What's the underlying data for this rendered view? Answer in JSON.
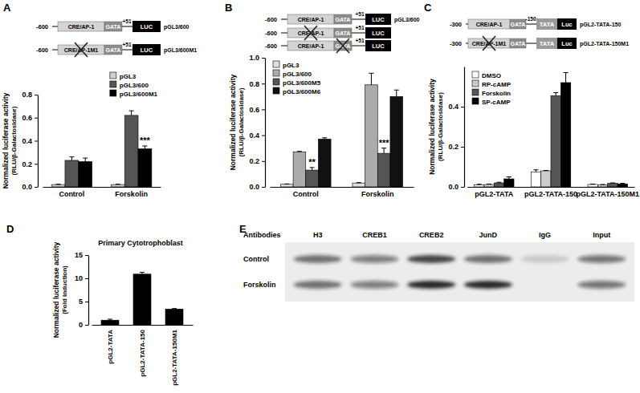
{
  "panel_labels": [
    "A",
    "B",
    "C",
    "D",
    "E"
  ],
  "diagrams": [
    {
      "constructs": [
        {
          "start": "-600",
          "upstream": [
            {
              "label": "CRE/AP-1"
            },
            {
              "label": "GATA"
            }
          ],
          "end": "+51",
          "downstream": [
            {
              "label": "LUC"
            }
          ],
          "name": "pGL3/600"
        },
        {
          "start": "-600",
          "upstream": [
            {
              "label": "CRE/AP-1M1",
              "mutated": true
            },
            {
              "label": "GATA"
            }
          ],
          "end": "+51",
          "downstream": [
            {
              "label": "LUC"
            }
          ],
          "name": "pGL3/600M1"
        }
      ]
    },
    {
      "constructs": [
        {
          "start": "-600",
          "upstream": [
            {
              "label": "CRE/AP-1"
            },
            {
              "label": "GATA"
            }
          ],
          "end": "+51",
          "downstream": [
            {
              "label": "LUC"
            }
          ],
          "name": "pGL3/600"
        },
        {
          "start": "-600",
          "upstream": [
            {
              "label": "CRE/AP-1",
              "mutated": true
            },
            {
              "label": "GATA"
            }
          ],
          "end": "+51",
          "downstream": [
            {
              "label": "LUC"
            }
          ]
        },
        {
          "start": "-600",
          "upstream": [
            {
              "label": "CRE/AP-1"
            },
            {
              "label": "GATA",
              "mutated": true
            }
          ],
          "end": "+51",
          "downstream": [
            {
              "label": "LUC"
            }
          ]
        }
      ]
    },
    {
      "constructs": [
        {
          "start": "-300",
          "upstream": [
            {
              "label": "CRE/AP-1"
            },
            {
              "label": "GATA"
            }
          ],
          "end": "-150",
          "downstream": [
            {
              "label": "TATA"
            },
            {
              "label": "Luc"
            }
          ],
          "name": "pGL2-TATA-150"
        },
        {
          "start": "-300",
          "upstream": [
            {
              "label": "CRE/AP-1M1",
              "mutated": true
            },
            {
              "label": "GATA"
            }
          ],
          "downstream": [
            {
              "label": "TATA"
            },
            {
              "label": "Luc"
            }
          ],
          "name": "pGL2-TATA-150M1"
        }
      ]
    }
  ],
  "chart_data": [
    {
      "type": "bar",
      "ylabel": [
        "Normalized luciferase activity",
        "(RLU/β-Galactosidase)"
      ],
      "categories": [
        "Control",
        "Forskolin"
      ],
      "series": [
        {
          "name": "pGL3",
          "color": "#d0d0d0",
          "values": [
            0.02,
            0.02
          ],
          "errors": [
            0.003,
            0.003
          ]
        },
        {
          "name": "pGL3/600",
          "color": "#555555",
          "values": [
            0.23,
            0.62
          ],
          "errors": [
            0.03,
            0.04
          ]
        },
        {
          "name": "pGL3/600M1",
          "color": "#000000",
          "values": [
            0.22,
            0.33
          ],
          "errors": [
            0.03,
            0.025
          ]
        }
      ],
      "ylim": [
        0,
        0.8
      ],
      "yticks": [
        {
          "value": 0,
          "label": "0.0"
        },
        0.2,
        0.4,
        0.6,
        0.8
      ],
      "legend": "upper right",
      "annotations": [
        {
          "text": "***",
          "series": 2,
          "category": 1
        }
      ]
    },
    {
      "type": "bar",
      "ylabel": [
        "Normalized luciferase activity",
        "(RLU/β-Galactosidase)"
      ],
      "categories": [
        "Control",
        "Forskolin"
      ],
      "series": [
        {
          "name": "pGL3",
          "color": "#e0e0e0",
          "values": [
            0.02,
            0.03
          ],
          "errors": [
            0.003,
            0.003
          ]
        },
        {
          "name": "pGL3/600",
          "color": "#ababab",
          "values": [
            0.27,
            0.79
          ],
          "errors": [
            0.005,
            0.09
          ]
        },
        {
          "name": "pGL3/600M5",
          "color": "#555555",
          "values": [
            0.13,
            0.26
          ],
          "errors": [
            0.02,
            0.04
          ]
        },
        {
          "name": "pGL3/600M6",
          "color": "#111111",
          "values": [
            0.37,
            0.7
          ],
          "errors": [
            0.01,
            0.05
          ]
        }
      ],
      "ylim": [
        0,
        1
      ],
      "yticks": [
        {
          "value": 0,
          "label": "0.0"
        },
        0.2,
        0.4,
        0.6,
        0.8,
        {
          "value": 1,
          "label": "1.0"
        }
      ],
      "legend": "upper left",
      "annotations": [
        {
          "text": "**",
          "series": 2,
          "category": 0
        },
        {
          "text": "***",
          "series": 2,
          "category": 1
        }
      ]
    },
    {
      "type": "bar",
      "ylabel": [
        "Normalized luciferase activity",
        "(RLU/β-Galactosidase)"
      ],
      "categories": [
        "pGL2-TATA",
        "pGL2-TATA-150",
        "pGL2-TATA-150M1"
      ],
      "series": [
        {
          "name": "DMSO",
          "color": "#ffffff",
          "values": [
            0.01,
            0.075,
            0.012
          ],
          "errors": [
            0.003,
            0.01,
            0.002
          ]
        },
        {
          "name": "RP-cAMP",
          "color": "#cccccc",
          "values": [
            0.012,
            0.08,
            0.01
          ],
          "errors": [
            0.002,
            0.002,
            0.002
          ]
        },
        {
          "name": "Forskolin",
          "color": "#555555",
          "values": [
            0.02,
            0.455,
            0.018
          ],
          "errors": [
            0.003,
            0.015,
            0.002
          ]
        },
        {
          "name": "SP-cAMP",
          "color": "#000000",
          "values": [
            0.04,
            0.52,
            0.015
          ],
          "errors": [
            0.01,
            0.05,
            0.003
          ]
        }
      ],
      "ylim": [
        0,
        0.6
      ],
      "yticks": [
        {
          "value": 0,
          "label": "0.0"
        },
        0.2,
        0.4
      ],
      "legend": "upper left"
    },
    {
      "type": "bar",
      "title": "Primary Cytotrophoblast",
      "ylabel": [
        "Normalized luciferase activity",
        "(Fold induction)"
      ],
      "categories": [
        "pGL2-TATA",
        "pGL2-TATA-150",
        "pGL2-TATA-150M1"
      ],
      "values": [
        1.0,
        10.9,
        3.4
      ],
      "errors": [
        0.2,
        0.4,
        0.1
      ],
      "color": "#000000",
      "ylim": [
        0,
        15
      ],
      "yticks": [
        0,
        5,
        10,
        15
      ]
    }
  ],
  "blot": {
    "header": "Antibodies",
    "lanes": [
      "H3",
      "CREB1",
      "CREB2",
      "JunD",
      "IgG",
      "Input"
    ],
    "rows": [
      "Control",
      "Forskolin"
    ],
    "band_intensity": [
      [
        0.6,
        0.5,
        0.8,
        0.6,
        0.15,
        0.55
      ],
      [
        0.6,
        0.5,
        0.95,
        0.95,
        0,
        0.55
      ]
    ]
  }
}
